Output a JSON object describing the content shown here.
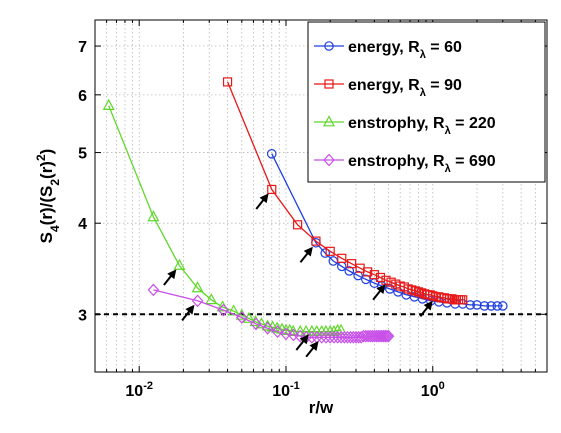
{
  "chart_data": {
    "type": "line",
    "x_scale": "log",
    "y_scale": "log",
    "xlim": [
      0.005,
      6
    ],
    "ylim": [
      2.5,
      7.6
    ],
    "grid": true,
    "legend_position": "top-right",
    "xlabel": "r/w",
    "ylabel": {
      "parts": [
        {
          "t": "S",
          "s": "n"
        },
        {
          "t": "4",
          "s": "sub"
        },
        {
          "t": "(r)/(S",
          "s": "n"
        },
        {
          "t": "2",
          "s": "sub"
        },
        {
          "t": "(r)",
          "s": "n"
        },
        {
          "t": "2",
          "s": "sup"
        },
        {
          "t": ")",
          "s": "n"
        }
      ]
    },
    "x_ticks": [
      {
        "value": 0.01,
        "base": "10",
        "exp": "-2"
      },
      {
        "value": 0.1,
        "base": "10",
        "exp": "-1"
      },
      {
        "value": 1,
        "base": "10",
        "exp": "0"
      }
    ],
    "y_ticks": [
      3,
      4,
      5,
      6,
      7
    ],
    "reference_line": {
      "y": 3,
      "style": "dashed",
      "color": "#000000"
    },
    "series": [
      {
        "name": "energy, R",
        "name_sub": "λ",
        "name_tail": " = 60",
        "color": "#1f3fe0",
        "marker": "circle",
        "x": [
          0.08,
          0.16,
          0.185,
          0.21,
          0.24,
          0.27,
          0.31,
          0.35,
          0.4,
          0.45,
          0.51,
          0.58,
          0.66,
          0.75,
          0.85,
          0.97,
          1.1,
          1.25,
          1.42,
          1.6,
          1.8,
          2.0,
          2.25,
          2.5,
          2.75,
          3.0
        ],
        "y": [
          4.98,
          3.76,
          3.64,
          3.55,
          3.49,
          3.44,
          3.39,
          3.35,
          3.31,
          3.28,
          3.25,
          3.22,
          3.19,
          3.17,
          3.15,
          3.13,
          3.12,
          3.11,
          3.1,
          3.1,
          3.09,
          3.09,
          3.08,
          3.08,
          3.08,
          3.08
        ]
      },
      {
        "name": "energy, R",
        "name_sub": "λ",
        "name_tail": " = 90",
        "color": "#e81818",
        "marker": "square",
        "x": [
          0.04,
          0.08,
          0.12,
          0.16,
          0.2,
          0.24,
          0.28,
          0.32,
          0.36,
          0.4,
          0.44,
          0.48,
          0.52,
          0.56,
          0.6,
          0.64,
          0.68,
          0.72,
          0.76,
          0.8,
          0.84,
          0.88,
          0.92,
          0.96,
          1.0,
          1.05,
          1.1,
          1.15,
          1.2,
          1.25,
          1.3,
          1.35,
          1.4,
          1.45,
          1.5,
          1.55,
          1.6
        ],
        "y": [
          6.25,
          4.45,
          3.98,
          3.78,
          3.66,
          3.58,
          3.52,
          3.47,
          3.43,
          3.4,
          3.37,
          3.34,
          3.32,
          3.3,
          3.28,
          3.27,
          3.25,
          3.24,
          3.23,
          3.22,
          3.21,
          3.2,
          3.19,
          3.19,
          3.18,
          3.17,
          3.17,
          3.16,
          3.16,
          3.15,
          3.15,
          3.15,
          3.14,
          3.14,
          3.14,
          3.14,
          3.14
        ]
      },
      {
        "name": "enstrophy, R",
        "name_sub": "λ",
        "name_tail": " = 220",
        "color": "#5fd82a",
        "marker": "triangle",
        "x": [
          0.0062,
          0.0125,
          0.0188,
          0.025,
          0.031,
          0.037,
          0.044,
          0.05,
          0.056,
          0.062,
          0.068,
          0.075,
          0.081,
          0.087,
          0.094,
          0.1,
          0.106,
          0.112,
          0.125,
          0.137,
          0.15,
          0.162,
          0.175,
          0.187,
          0.2,
          0.212,
          0.225,
          0.237
        ],
        "y": [
          5.8,
          4.08,
          3.5,
          3.26,
          3.14,
          3.07,
          3.03,
          2.99,
          2.96,
          2.93,
          2.91,
          2.89,
          2.88,
          2.87,
          2.86,
          2.85,
          2.85,
          2.84,
          2.84,
          2.84,
          2.84,
          2.84,
          2.84,
          2.84,
          2.84,
          2.84,
          2.85,
          2.85
        ]
      },
      {
        "name": "enstrophy, R",
        "name_sub": "λ",
        "name_tail": " = 690",
        "color": "#c850e8",
        "marker": "diamond",
        "x": [
          0.0125,
          0.025,
          0.0375,
          0.05,
          0.0625,
          0.075,
          0.0875,
          0.1,
          0.1125,
          0.125,
          0.1375,
          0.15,
          0.1625,
          0.175,
          0.1875,
          0.2,
          0.2125,
          0.225,
          0.2375,
          0.25,
          0.2625,
          0.275,
          0.2875,
          0.3,
          0.3125,
          0.325,
          0.3375,
          0.35,
          0.3625,
          0.375,
          0.3875,
          0.4,
          0.4125,
          0.425,
          0.4375,
          0.45,
          0.4625,
          0.475,
          0.4875,
          0.5
        ],
        "y": [
          3.24,
          3.13,
          3.04,
          2.97,
          2.91,
          2.87,
          2.84,
          2.82,
          2.81,
          2.8,
          2.79,
          2.79,
          2.79,
          2.79,
          2.79,
          2.79,
          2.79,
          2.79,
          2.79,
          2.79,
          2.79,
          2.79,
          2.79,
          2.79,
          2.79,
          2.79,
          2.8,
          2.8,
          2.8,
          2.8,
          2.8,
          2.8,
          2.8,
          2.8,
          2.8,
          2.8,
          2.8,
          2.8,
          2.8,
          2.8
        ]
      }
    ],
    "annotations": [
      {
        "type": "arrow",
        "points_to": [
          0.16,
          3.76
        ]
      },
      {
        "type": "arrow",
        "points_to": [
          0.08,
          4.45
        ]
      },
      {
        "type": "arrow",
        "points_to": [
          0.5,
          3.34
        ]
      },
      {
        "type": "arrow",
        "points_to": [
          1.05,
          3.17
        ]
      },
      {
        "type": "arrow",
        "points_to": [
          0.0188,
          3.5
        ]
      },
      {
        "type": "arrow",
        "points_to": [
          0.025,
          3.13
        ]
      },
      {
        "type": "arrow",
        "points_to": [
          0.15,
          2.85
        ]
      },
      {
        "type": "arrow",
        "points_to": [
          0.175,
          2.79
        ]
      }
    ]
  }
}
